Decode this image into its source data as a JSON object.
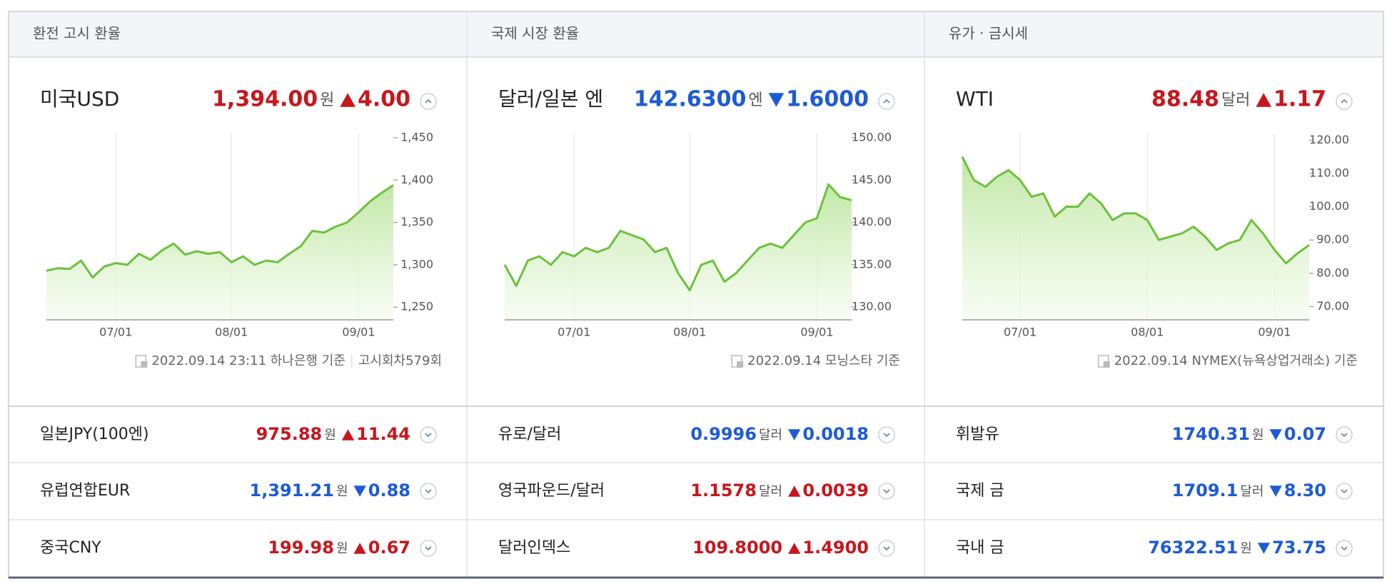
{
  "panels": [
    {
      "tab": "환전 고시 환율",
      "title": "미국USD",
      "price": "1,394.00",
      "unit": "원",
      "direction": "up",
      "change": "4.00",
      "chart_data": {
        "type": "line",
        "color": "#6cc13c",
        "grid": true,
        "categories": [
          null,
          null,
          null,
          null,
          null,
          null,
          "07/01",
          null,
          null,
          null,
          null,
          null,
          null,
          null,
          null,
          null,
          "08/01",
          null,
          null,
          null,
          null,
          null,
          null,
          null,
          null,
          null,
          null,
          "09/01",
          null,
          null,
          null
        ],
        "values": [
          1293,
          1296,
          1295,
          1305,
          1285,
          1298,
          1302,
          1300,
          1313,
          1306,
          1317,
          1325,
          1312,
          1316,
          1313,
          1315,
          1303,
          1310,
          1300,
          1305,
          1303,
          1313,
          1322,
          1340,
          1338,
          1345,
          1350,
          1362,
          1375,
          1385,
          1394
        ],
        "ylim": [
          1235,
          1455
        ],
        "yticks": [
          {
            "value": 1250,
            "label": "1,250"
          },
          {
            "value": 1300,
            "label": "1,300"
          },
          {
            "value": 1350,
            "label": "1,350"
          },
          {
            "value": 1400,
            "label": "1,400"
          },
          {
            "value": 1450,
            "label": "1,450"
          }
        ]
      },
      "footnote": [
        "2022.09.14 23:11 하나은행 기준",
        "고시회차579회"
      ],
      "rows": [
        {
          "name": "일본JPY(100엔)",
          "price": "975.88",
          "unit": "원",
          "direction": "up",
          "change": "11.44"
        },
        {
          "name": "유럽연합EUR",
          "price": "1,391.21",
          "unit": "원",
          "direction": "down",
          "change": "0.88"
        },
        {
          "name": "중국CNY",
          "price": "199.98",
          "unit": "원",
          "direction": "up",
          "change": "0.67"
        }
      ]
    },
    {
      "tab": "국제 시장 환율",
      "title": "달러/일본 엔",
      "price": "142.6300",
      "unit": "엔",
      "direction": "down",
      "change": "1.6000",
      "chart_data": {
        "type": "line",
        "color": "#6cc13c",
        "grid": true,
        "categories": [
          null,
          null,
          null,
          null,
          null,
          null,
          "07/01",
          null,
          null,
          null,
          null,
          null,
          null,
          null,
          null,
          null,
          "08/01",
          null,
          null,
          null,
          null,
          null,
          null,
          null,
          null,
          null,
          null,
          "09/01",
          null,
          null,
          null
        ],
        "values": [
          135,
          132.5,
          135.5,
          136,
          135,
          136.5,
          136,
          137,
          136.5,
          137,
          139,
          138.5,
          138,
          136.5,
          137,
          134,
          132,
          135,
          135.5,
          133,
          134,
          135.5,
          137,
          137.5,
          137,
          138.5,
          140,
          140.5,
          144.5,
          143,
          142.63
        ],
        "ylim": [
          128.5,
          150.5
        ],
        "yticks": [
          {
            "value": 130,
            "label": "130.00"
          },
          {
            "value": 135,
            "label": "135.00"
          },
          {
            "value": 140,
            "label": "140.00"
          },
          {
            "value": 145,
            "label": "145.00"
          },
          {
            "value": 150,
            "label": "150.00"
          }
        ]
      },
      "footnote": [
        "2022.09.14 모닝스타 기준"
      ],
      "rows": [
        {
          "name": "유로/달러",
          "price": "0.9996",
          "unit": "달러",
          "direction": "down",
          "change": "0.0018"
        },
        {
          "name": "영국파운드/달러",
          "price": "1.1578",
          "unit": "달러",
          "direction": "up",
          "change": "0.0039"
        },
        {
          "name": "달러인덱스",
          "price": "109.8000",
          "unit": "",
          "direction": "up",
          "change": "1.4900"
        }
      ]
    },
    {
      "tab": "유가 · 금시세",
      "title": "WTI",
      "price": "88.48",
      "unit": "달러",
      "direction": "up",
      "change": "1.17",
      "chart_data": {
        "type": "line",
        "color": "#6cc13c",
        "grid": true,
        "categories": [
          null,
          null,
          null,
          null,
          null,
          "07/01",
          null,
          null,
          null,
          null,
          null,
          null,
          null,
          null,
          null,
          null,
          "08/01",
          null,
          null,
          null,
          null,
          null,
          null,
          null,
          null,
          null,
          null,
          "09/01",
          null,
          null,
          null
        ],
        "values": [
          115,
          108,
          106,
          109,
          111,
          108,
          103,
          104,
          97,
          100,
          100,
          104,
          101,
          96,
          98,
          98,
          96,
          90,
          91,
          92,
          94,
          91,
          87,
          89,
          90,
          96,
          92,
          87,
          83,
          86,
          88.48
        ],
        "ylim": [
          66,
          122
        ],
        "yticks": [
          {
            "value": 70,
            "label": "70.00"
          },
          {
            "value": 80,
            "label": "80.00"
          },
          {
            "value": 90,
            "label": "90.00"
          },
          {
            "value": 100,
            "label": "100.00"
          },
          {
            "value": 110,
            "label": "110.00"
          },
          {
            "value": 120,
            "label": "120.00"
          }
        ]
      },
      "footnote": [
        "2022.09.14 NYMEX(뉴욕상업거래소) 기준"
      ],
      "rows": [
        {
          "name": "휘발유",
          "price": "1740.31",
          "unit": "원",
          "direction": "down",
          "change": "0.07"
        },
        {
          "name": "국제 금",
          "price": "1709.1",
          "unit": "달러",
          "direction": "down",
          "change": "8.30"
        },
        {
          "name": "국내 금",
          "price": "76322.51",
          "unit": "원",
          "direction": "down",
          "change": "73.75"
        }
      ]
    }
  ]
}
